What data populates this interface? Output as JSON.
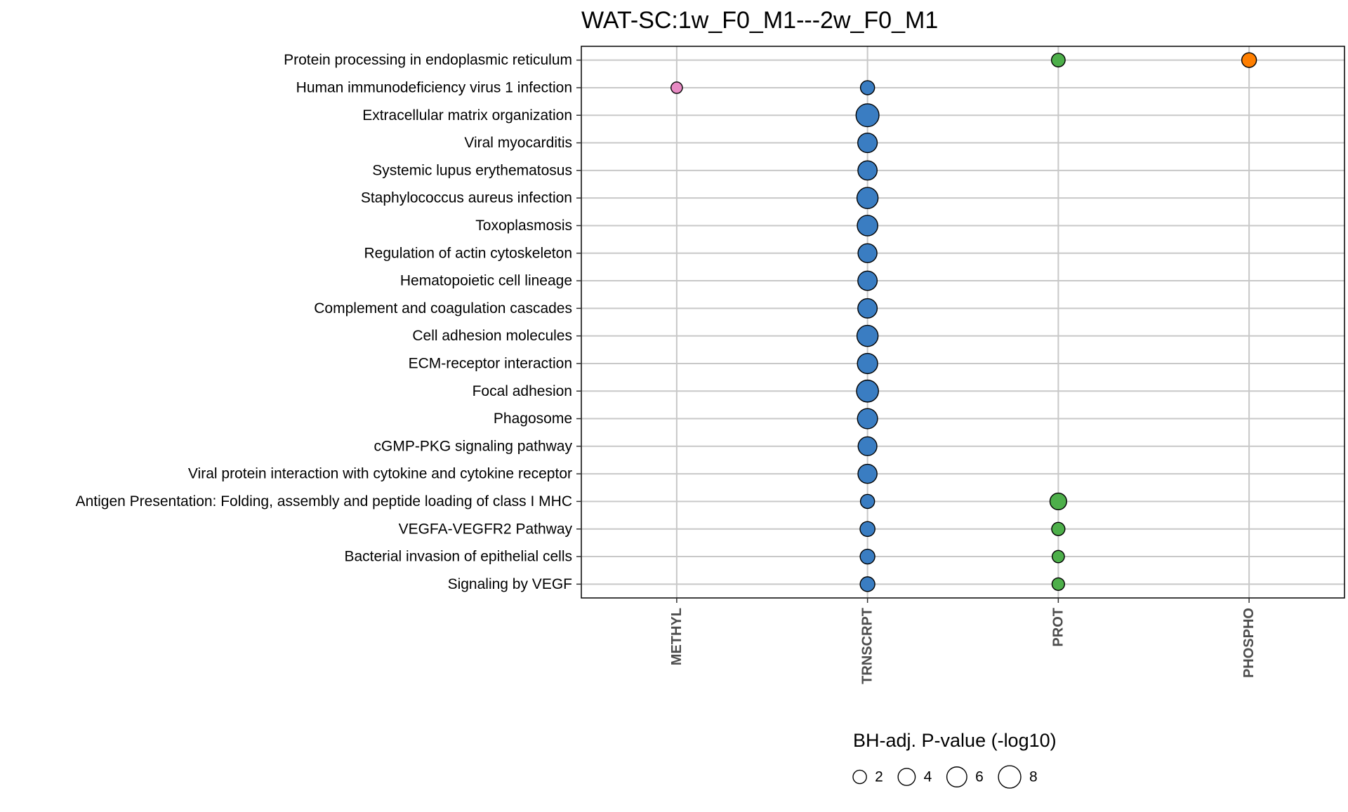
{
  "chart_data": {
    "type": "scatter",
    "title": "WAT-SC:1w_F0_M1---2w_F0_M1",
    "xlabel": "",
    "ylabel": "",
    "x_categories": [
      "METHYL",
      "TRNSCRPT",
      "PROT",
      "PHOSPHO"
    ],
    "y_categories": [
      "Protein processing in endoplasmic reticulum",
      "Human immunodeficiency virus 1 infection",
      "Extracellular matrix organization",
      "Viral myocarditis",
      "Systemic lupus erythematosus",
      "Staphylococcus aureus infection",
      "Toxoplasmosis",
      "Regulation of actin cytoskeleton",
      "Hematopoietic cell lineage",
      "Complement and coagulation cascades",
      "Cell adhesion molecules",
      "ECM-receptor interaction",
      "Focal adhesion",
      "Phagosome",
      "cGMP-PKG signaling pathway",
      "Viral protein interaction with cytokine and cytokine receptor",
      "Antigen Presentation: Folding, assembly and peptide loading of class I MHC",
      "VEGFA-VEGFR2 Pathway",
      "Bacterial invasion of epithelial cells",
      "Signaling by VEGF"
    ],
    "ome_colors": {
      "METHYL": "#e78ac3",
      "TRNSCRPT": "#3a7dc2",
      "PROT": "#4daf4a",
      "PHOSPHO": "#ff7f00"
    },
    "points": [
      {
        "pathway": "Protein processing in endoplasmic reticulum",
        "ome": "PROT",
        "value": 2.1
      },
      {
        "pathway": "Protein processing in endoplasmic reticulum",
        "ome": "PHOSPHO",
        "value": 2.6
      },
      {
        "pathway": "Human immunodeficiency virus 1 infection",
        "ome": "METHYL",
        "value": 1.2
      },
      {
        "pathway": "Human immunodeficiency virus 1 infection",
        "ome": "TRNSCRPT",
        "value": 2.3
      },
      {
        "pathway": "Extracellular matrix organization",
        "ome": "TRNSCRPT",
        "value": 8.5
      },
      {
        "pathway": "Viral myocarditis",
        "ome": "TRNSCRPT",
        "value": 5.6
      },
      {
        "pathway": "Systemic lupus erythematosus",
        "ome": "TRNSCRPT",
        "value": 5.4
      },
      {
        "pathway": "Staphylococcus aureus infection",
        "ome": "TRNSCRPT",
        "value": 6.9
      },
      {
        "pathway": "Toxoplasmosis",
        "ome": "TRNSCRPT",
        "value": 6.4
      },
      {
        "pathway": "Regulation of actin cytoskeleton",
        "ome": "TRNSCRPT",
        "value": 5.2
      },
      {
        "pathway": "Hematopoietic cell lineage",
        "ome": "TRNSCRPT",
        "value": 5.5
      },
      {
        "pathway": "Complement and coagulation cascades",
        "ome": "TRNSCRPT",
        "value": 5.5
      },
      {
        "pathway": "Cell adhesion molecules",
        "ome": "TRNSCRPT",
        "value": 6.9
      },
      {
        "pathway": "ECM-receptor interaction",
        "ome": "TRNSCRPT",
        "value": 6.2
      },
      {
        "pathway": "Focal adhesion",
        "ome": "TRNSCRPT",
        "value": 7.6
      },
      {
        "pathway": "Phagosome",
        "ome": "TRNSCRPT",
        "value": 6.1
      },
      {
        "pathway": "cGMP-PKG signaling pathway",
        "ome": "TRNSCRPT",
        "value": 5.1
      },
      {
        "pathway": "Viral protein interaction with cytokine and cytokine receptor",
        "ome": "TRNSCRPT",
        "value": 5.3
      },
      {
        "pathway": "Antigen Presentation: Folding, assembly and peptide loading of class I MHC",
        "ome": "TRNSCRPT",
        "value": 2.3
      },
      {
        "pathway": "Antigen Presentation: Folding, assembly and peptide loading of class I MHC",
        "ome": "PROT",
        "value": 3.7
      },
      {
        "pathway": "VEGFA-VEGFR2 Pathway",
        "ome": "TRNSCRPT",
        "value": 2.7
      },
      {
        "pathway": "VEGFA-VEGFR2 Pathway",
        "ome": "PROT",
        "value": 1.9
      },
      {
        "pathway": "Bacterial invasion of epithelial cells",
        "ome": "TRNSCRPT",
        "value": 2.6
      },
      {
        "pathway": "Bacterial invasion of epithelial cells",
        "ome": "PROT",
        "value": 1.5
      },
      {
        "pathway": "Signaling by VEGF",
        "ome": "TRNSCRPT",
        "value": 2.6
      },
      {
        "pathway": "Signaling by VEGF",
        "ome": "PROT",
        "value": 1.6
      }
    ],
    "size_legend": {
      "title": "BH-adj. P-value (-log10)",
      "breaks": [
        2,
        4,
        6,
        8
      ],
      "labels": [
        "2",
        "4",
        "6",
        "8"
      ],
      "placement": "bottom"
    },
    "grid": true
  }
}
